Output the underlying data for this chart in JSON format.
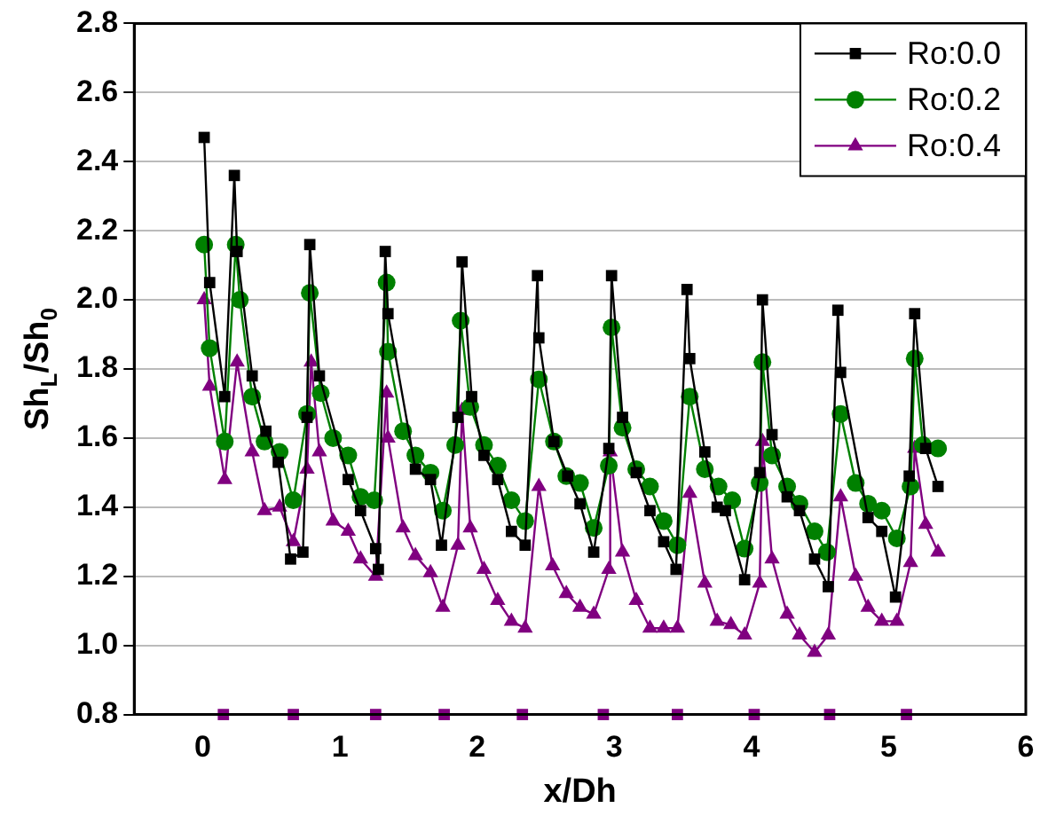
{
  "chart_data": {
    "type": "line",
    "xlabel": "x/Dh",
    "ylabel": "Sh$_{L}$/Sh$_{0}$",
    "xlim": [
      -0.5,
      6
    ],
    "xticks": [
      0,
      1,
      2,
      3,
      4,
      5,
      6
    ],
    "ylim": [
      0.8,
      2.8
    ],
    "yticks": [
      {
        "value": 0.8,
        "label": "0.8"
      },
      {
        "value": 1,
        "label": "1.0"
      },
      {
        "value": 1.2,
        "label": "1.2"
      },
      {
        "value": 1.4,
        "label": "1.4"
      },
      {
        "value": 1.6,
        "label": "1.6"
      },
      {
        "value": 1.8,
        "label": "1.8"
      },
      {
        "value": 2,
        "label": "2.0"
      },
      {
        "value": 2.2,
        "label": "2.2"
      },
      {
        "value": 2.4,
        "label": "2.4"
      },
      {
        "value": 2.6,
        "label": "2.6"
      },
      {
        "value": 2.8,
        "label": "2.8"
      }
    ],
    "grid": "y",
    "legend": "top right",
    "line_style": "solid",
    "series": [
      {
        "name": "Ro:0.0",
        "color": "#000000",
        "marker": "square",
        "x": [
          0.01,
          0.05,
          0.16,
          0.23,
          0.25,
          0.36,
          0.46,
          0.55,
          0.64,
          0.73,
          0.76,
          0.78,
          0.85,
          1.06,
          1.15,
          1.26,
          1.28,
          1.33,
          1.35,
          1.55,
          1.66,
          1.74,
          1.86,
          1.89,
          1.96,
          2.05,
          2.15,
          2.25,
          2.35,
          2.44,
          2.45,
          2.56,
          2.66,
          2.75,
          2.85,
          2.96,
          2.98,
          3.06,
          3.16,
          3.26,
          3.36,
          3.45,
          3.53,
          3.55,
          3.66,
          3.75,
          3.81,
          3.95,
          4.06,
          4.08,
          4.15,
          4.26,
          4.35,
          4.46,
          4.56,
          4.63,
          4.65,
          4.85,
          4.95,
          5.05,
          5.15,
          5.19,
          5.27,
          5.36
        ],
        "values": [
          2.47,
          2.05,
          1.72,
          2.36,
          2.14,
          1.78,
          1.62,
          1.53,
          1.25,
          1.27,
          1.66,
          2.16,
          1.78,
          1.48,
          1.39,
          1.28,
          1.22,
          2.14,
          1.96,
          1.51,
          1.48,
          1.29,
          1.66,
          2.11,
          1.72,
          1.55,
          1.48,
          1.33,
          1.29,
          2.07,
          1.89,
          1.59,
          1.49,
          1.41,
          1.27,
          1.57,
          2.07,
          1.66,
          1.5,
          1.39,
          1.3,
          1.22,
          2.03,
          1.83,
          1.56,
          1.4,
          1.39,
          1.19,
          1.5,
          2.0,
          1.61,
          1.43,
          1.39,
          1.25,
          1.17,
          1.97,
          1.79,
          1.37,
          1.33,
          1.14,
          1.49,
          1.96,
          1.57,
          1.46
        ]
      },
      {
        "name": "Ro:0.2",
        "color": "#008000",
        "marker": "circle",
        "x": [
          0.01,
          0.05,
          0.16,
          0.24,
          0.27,
          0.36,
          0.45,
          0.56,
          0.66,
          0.76,
          0.78,
          0.86,
          0.95,
          1.06,
          1.15,
          1.25,
          1.34,
          1.35,
          1.46,
          1.55,
          1.66,
          1.75,
          1.84,
          1.88,
          1.95,
          2.05,
          2.15,
          2.25,
          2.35,
          2.45,
          2.56,
          2.65,
          2.75,
          2.85,
          2.96,
          2.98,
          3.06,
          3.16,
          3.26,
          3.36,
          3.46,
          3.55,
          3.66,
          3.76,
          3.86,
          3.95,
          4.06,
          4.08,
          4.15,
          4.26,
          4.35,
          4.46,
          4.55,
          4.65,
          4.76,
          4.85,
          4.95,
          5.06,
          5.16,
          5.19,
          5.25,
          5.36
        ],
        "values": [
          2.16,
          1.86,
          1.59,
          2.16,
          2.0,
          1.72,
          1.59,
          1.56,
          1.42,
          1.67,
          2.02,
          1.73,
          1.6,
          1.55,
          1.43,
          1.42,
          2.05,
          1.85,
          1.62,
          1.55,
          1.5,
          1.39,
          1.58,
          1.94,
          1.69,
          1.58,
          1.52,
          1.42,
          1.36,
          1.77,
          1.59,
          1.49,
          1.47,
          1.34,
          1.52,
          1.92,
          1.63,
          1.51,
          1.46,
          1.36,
          1.29,
          1.72,
          1.51,
          1.46,
          1.42,
          1.28,
          1.47,
          1.82,
          1.55,
          1.46,
          1.41,
          1.33,
          1.27,
          1.67,
          1.47,
          1.41,
          1.39,
          1.31,
          1.46,
          1.83,
          1.58,
          1.57
        ]
      },
      {
        "name": "Ro:0.4",
        "color": "#800080",
        "marker": "triangle",
        "x": [
          0.01,
          0.05,
          0.16,
          0.25,
          0.36,
          0.45,
          0.56,
          0.66,
          0.76,
          0.79,
          0.85,
          0.95,
          1.06,
          1.15,
          1.26,
          1.34,
          1.35,
          1.46,
          1.55,
          1.66,
          1.75,
          1.86,
          1.89,
          1.95,
          2.05,
          2.15,
          2.25,
          2.35,
          2.45,
          2.55,
          2.65,
          2.75,
          2.85,
          2.96,
          2.97,
          3.06,
          3.16,
          3.26,
          3.36,
          3.46,
          3.55,
          3.66,
          3.75,
          3.85,
          3.95,
          4.06,
          4.08,
          4.15,
          4.26,
          4.35,
          4.46,
          4.56,
          4.65,
          4.76,
          4.85,
          4.95,
          5.06,
          5.16,
          5.19,
          5.27,
          5.36
        ],
        "values": [
          2.0,
          1.75,
          1.48,
          1.82,
          1.56,
          1.39,
          1.4,
          1.3,
          1.51,
          1.82,
          1.56,
          1.36,
          1.33,
          1.25,
          1.2,
          1.73,
          1.6,
          1.34,
          1.26,
          1.21,
          1.11,
          1.29,
          1.68,
          1.34,
          1.22,
          1.13,
          1.07,
          1.05,
          1.46,
          1.23,
          1.15,
          1.11,
          1.09,
          1.22,
          1.56,
          1.27,
          1.13,
          1.05,
          1.05,
          1.05,
          1.44,
          1.18,
          1.07,
          1.06,
          1.03,
          1.18,
          1.59,
          1.25,
          1.09,
          1.03,
          0.98,
          1.03,
          1.43,
          1.2,
          1.11,
          1.07,
          1.07,
          1.24,
          1.57,
          1.35,
          1.27
        ]
      },
      {
        "type": "scatter",
        "color": "#800080",
        "marker": "square",
        "x": [
          0.15,
          0.66,
          1.26,
          1.76,
          2.33,
          2.92,
          3.46,
          4.02,
          4.57,
          5.13
        ],
        "values": [
          0.8,
          0.8,
          0.8,
          0.8,
          0.8,
          0.8,
          0.8,
          0.8,
          0.8,
          0.8
        ]
      }
    ]
  }
}
